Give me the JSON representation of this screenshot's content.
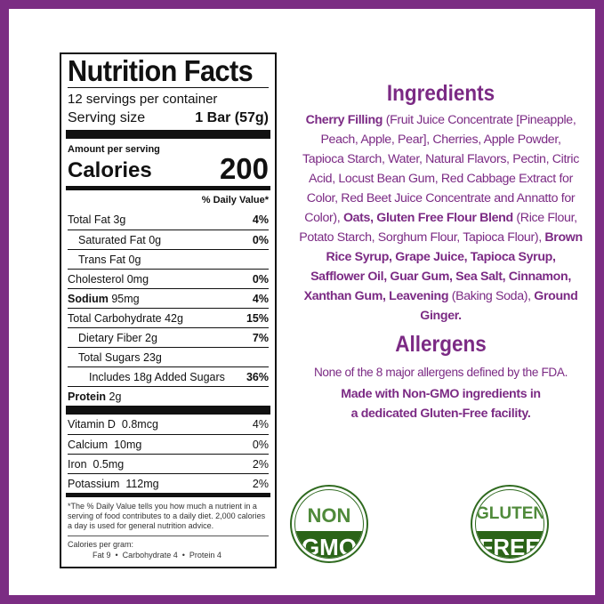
{
  "nutrition": {
    "title": "Nutrition Facts",
    "servings": "12 servings per container",
    "serving_size_label": "Serving size",
    "serving_size_value": "1 Bar (57g)",
    "amount_per_serving": "Amount per serving",
    "calories_label": "Calories",
    "calories_value": "200",
    "dv_header": "% Daily Value*",
    "rows": [
      {
        "label": "Total Fat",
        "amount": "3g",
        "dv": "4%",
        "bold": true,
        "indent": 0
      },
      {
        "label": "Saturated Fat",
        "amount": "0g",
        "dv": "0%",
        "bold": false,
        "indent": 1
      },
      {
        "label": "Trans Fat",
        "amount": "0g",
        "dv": "",
        "bold": false,
        "indent": 1
      },
      {
        "label": "Cholesterol",
        "amount": "0mg",
        "dv": "0%",
        "bold": true,
        "indent": 0
      },
      {
        "label": "Sodium",
        "amount": "95mg",
        "dv": "4%",
        "bold": true,
        "indent": 0
      },
      {
        "label": "Total Carbohydrate",
        "amount": "42g",
        "dv": "15%",
        "bold": true,
        "indent": 0
      },
      {
        "label": "Dietary Fiber",
        "amount": "2g",
        "dv": "7%",
        "bold": false,
        "indent": 1
      },
      {
        "label": "Total Sugars",
        "amount": "23g",
        "dv": "",
        "bold": false,
        "indent": 1
      },
      {
        "label": "Includes 18g Added Sugars",
        "amount": "",
        "dv": "36%",
        "bold": false,
        "indent": 2
      },
      {
        "label": "Protein",
        "amount": "2g",
        "dv": "",
        "bold": true,
        "indent": 0
      }
    ],
    "vitamins": [
      {
        "label": "Vitamin D",
        "amount": "0.8mcg",
        "dv": "4%"
      },
      {
        "label": "Calcium",
        "amount": "10mg",
        "dv": "0%"
      },
      {
        "label": "Iron",
        "amount": "0.5mg",
        "dv": "2%"
      },
      {
        "label": "Potassium",
        "amount": "112mg",
        "dv": "2%"
      }
    ],
    "footnote": "*The % Daily Value tells you how much a nutrient in a serving of food contributes to a daily diet. 2,000 calories a day is used for general nutrition advice.",
    "calories_per_gram": "Calories per gram:",
    "per_gram_values": "Fat 9  •  Carbohydrate 4  •  Protein 4"
  },
  "ingredients": {
    "heading": "Ingredients",
    "segments": [
      {
        "text": "Cherry Filling",
        "bold": true
      },
      {
        "text": " (Fruit Juice Concentrate [Pineapple, Peach, Apple, Pear], Cherries, Apple Powder, Tapioca Starch, Water, Natural Flavors, Pectin, Citric Acid, Locust Bean Gum, Red Cabbage Extract for Color, Red Beet Juice Concentrate and Annatto for Color), ",
        "bold": false
      },
      {
        "text": "Oats, Gluten Free Flour Blend",
        "bold": true
      },
      {
        "text": " (Rice Flour, Potato Starch, Sorghum Flour, Tapioca Flour), ",
        "bold": false
      },
      {
        "text": "Brown Rice Syrup, Grape Juice, Tapioca Syrup, Safflower Oil, Guar Gum, Sea Salt, Cinnamon, Xanthan Gum, Leavening",
        "bold": true
      },
      {
        "text": " (Baking Soda), ",
        "bold": false
      },
      {
        "text": "Ground Ginger.",
        "bold": true
      }
    ]
  },
  "allergens": {
    "heading": "Allergens",
    "line1": "None of the 8 major allergens defined by the FDA.",
    "line2": "Made with Non-GMO ingredients in a dedicated Gluten-Free facility."
  },
  "badges": [
    {
      "top": "NON",
      "bottom": "GMO"
    },
    {
      "top": "GLUTEN",
      "bottom": "FREE"
    }
  ],
  "colors": {
    "frame": "#7b2d83",
    "accent_text": "#7b2a84",
    "badge_green": "#2b6418"
  }
}
